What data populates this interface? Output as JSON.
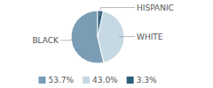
{
  "chart_data": {
    "type": "pie",
    "categories": [
      "BLACK",
      "WHITE",
      "HISPANIC"
    ],
    "values": [
      53.7,
      43.0,
      3.3
    ],
    "value_labels": [
      "53.7%",
      "43.0%",
      "3.3%"
    ],
    "colors": [
      "#7a9db5",
      "#c5d8e3",
      "#2e5f7a"
    ],
    "legend": "bottom"
  }
}
